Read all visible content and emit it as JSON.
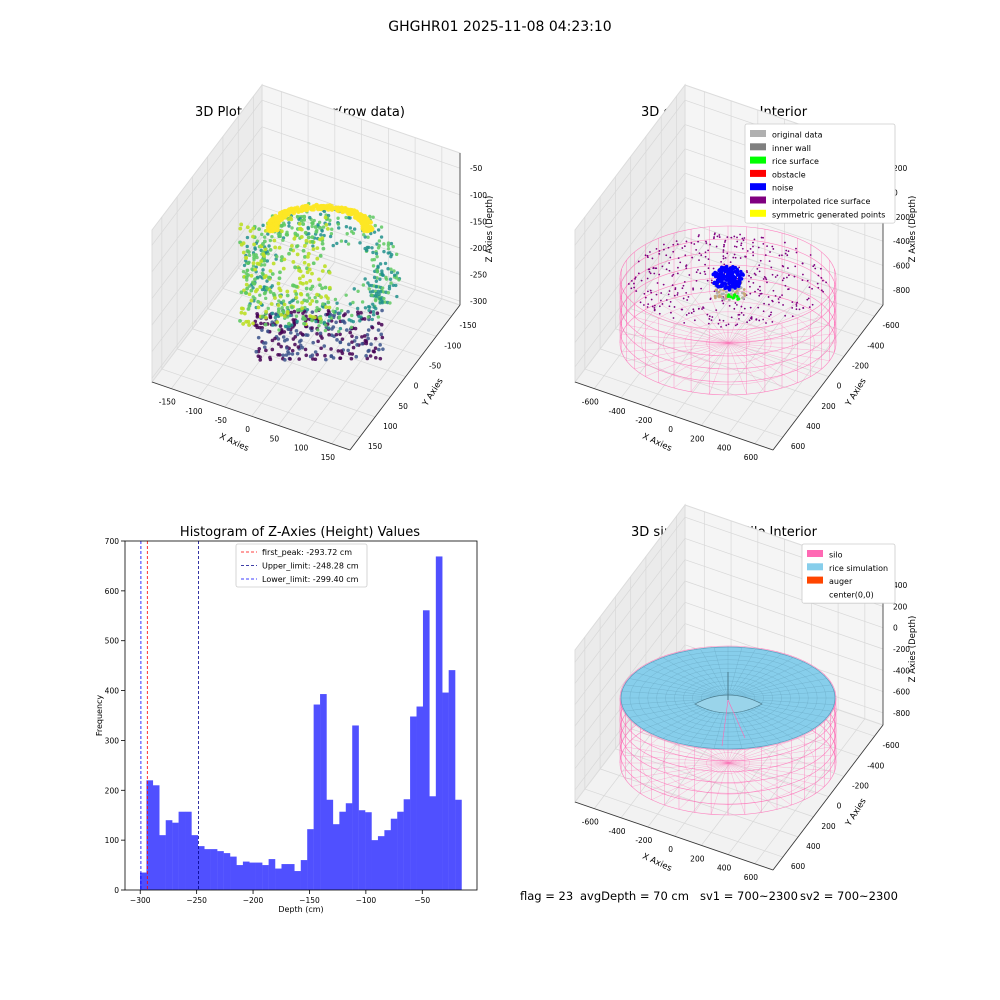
{
  "figure": {
    "suptitle": "GHGHR01 2025-11-08 04:23:10",
    "footer": {
      "flag": "flag = 23",
      "avg_depth": "avgDepth = 70 cm",
      "sv1": "sv1 = 700~2300",
      "sv2": "sv2 = 700~2300"
    }
  },
  "colors": {
    "bar": "#5050ff",
    "first_peak_line": "#ff0000",
    "limit_line": "#00008b",
    "silo": "#ff69b4",
    "rice_simulation": "#87ceeb",
    "auger": "#ff4500",
    "original_data": "#b0b0b0",
    "inner_wall": "#808080",
    "rice_surface": "#00ff00",
    "obstacle": "#ff0000",
    "noise": "#0000ff",
    "interpolated_rice_surface": "#800080",
    "symmetric_generated_points": "#ffff00"
  },
  "chart_data": [
    {
      "type": "scatter",
      "panel": "top-left",
      "title": "3D Plot of Silo Interior(row data)",
      "xlabel": "X Axies",
      "ylabel": "Y Axies",
      "zlabel": "Z Axies (Depth)",
      "x_ticks": [
        "-150",
        "-100",
        "-50",
        "0",
        "50",
        "100",
        "150"
      ],
      "y_ticks": [
        "150",
        "100",
        "50",
        "0",
        "-50",
        "-100",
        "-150"
      ],
      "z_ticks": [
        "-50",
        "-100",
        "-150",
        "-200",
        "-250",
        "-300"
      ],
      "xlim": [
        -175,
        175
      ],
      "ylim": [
        -175,
        175
      ],
      "zlim": [
        -330,
        -30
      ],
      "colormap": "viridis"
    },
    {
      "type": "scatter",
      "panel": "top-right",
      "title": "3D classify of Silo Interior",
      "xlabel": "X Axies",
      "ylabel": "Y Axies",
      "zlabel": "Z Axies (Depth)",
      "x_ticks": [
        "-600",
        "-400",
        "-200",
        "0",
        "200",
        "400",
        "600"
      ],
      "y_ticks": [
        "600",
        "400",
        "200",
        "0",
        "-200",
        "-400",
        "-600"
      ],
      "z_ticks": [
        "200",
        "0",
        "-200",
        "-400",
        "-600",
        "-800"
      ],
      "legend": [
        "original data",
        "inner wall",
        "rice surface",
        "obstacle",
        "noise",
        "interpolated rice surface",
        "symmetric generated points"
      ],
      "legend_position": "top-right",
      "xlim": [
        -700,
        700
      ],
      "ylim": [
        -700,
        700
      ],
      "zlim": [
        -900,
        300
      ]
    },
    {
      "type": "bar",
      "panel": "bottom-left",
      "title": "Histogram of Z-Axies (Height) Values",
      "xlabel": "Depth (cm)",
      "ylabel": "Frequency",
      "x_ticks": [
        -300,
        -250,
        -200,
        -150,
        -100,
        -50
      ],
      "y_ticks": [
        0,
        100,
        200,
        300,
        400,
        500,
        600,
        700
      ],
      "xlim": [
        -313.5,
        -1.5
      ],
      "ylim": [
        0,
        700
      ],
      "bin_start": -300.2,
      "bin_width": 5.7,
      "values": [
        35,
        220,
        210,
        110,
        140,
        135,
        157,
        157,
        110,
        88,
        82,
        82,
        78,
        74,
        67,
        50,
        57,
        55,
        55,
        50,
        62,
        43,
        52,
        52,
        38,
        60,
        122,
        372,
        393,
        181,
        132,
        157,
        174,
        330,
        160,
        156,
        100,
        108,
        120,
        143,
        157,
        182,
        348,
        368,
        561,
        188,
        669,
        396,
        441,
        181
      ],
      "vlines": [
        {
          "label": "first_peak: -293.72 cm",
          "x": -293.72,
          "color": "#ff0000"
        },
        {
          "label": "Upper_limit: -248.28 cm",
          "x": -248.28,
          "color": "#00008b"
        },
        {
          "label": "Lower_limit: -299.40 cm",
          "x": -299.4,
          "color": "#0000ff"
        }
      ],
      "legend_position": "top-center"
    },
    {
      "type": "scatter",
      "panel": "bottom-right",
      "title": "3D simulation of Silo Interior",
      "xlabel": "X Axies",
      "ylabel": "Y Axies",
      "zlabel": "Z Axies (Depth)",
      "x_ticks": [
        "-600",
        "-400",
        "-200",
        "0",
        "200",
        "400",
        "600"
      ],
      "y_ticks": [
        "600",
        "400",
        "200",
        "0",
        "-200",
        "-400",
        "-600"
      ],
      "z_ticks": [
        "400",
        "200",
        "0",
        "-200",
        "-400",
        "-600",
        "-800"
      ],
      "legend": [
        "silo",
        "rice simulation",
        "auger",
        "center(0,0)"
      ],
      "legend_position": "top-right",
      "xlim": [
        -700,
        700
      ],
      "ylim": [
        -700,
        700
      ],
      "zlim": [
        -900,
        500
      ]
    }
  ]
}
